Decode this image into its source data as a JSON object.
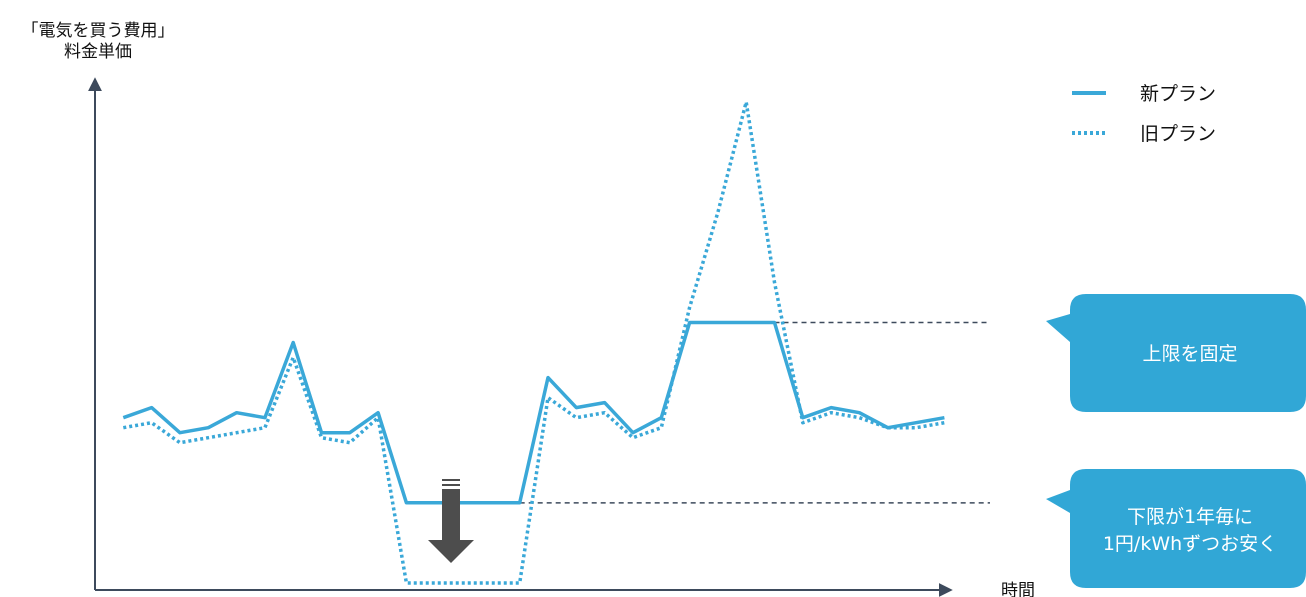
{
  "chart_data": {
    "type": "line",
    "ylabel_lines": [
      "「電気を買う費用」",
      "料金単価"
    ],
    "xlabel": "時間",
    "x": [
      1,
      2,
      3,
      4,
      5,
      6,
      7,
      8,
      9,
      10,
      11,
      12,
      13,
      14,
      15,
      16,
      17,
      18,
      19,
      20,
      21,
      22,
      23,
      24,
      25,
      26,
      27,
      28,
      29,
      30
    ],
    "xlim": [
      0,
      32
    ],
    "ylim": [
      0,
      100
    ],
    "series": [
      {
        "name": "新プラン",
        "style": "solid",
        "color": "#3aa8d8",
        "values": [
          33,
          35,
          30,
          31,
          34,
          33,
          48,
          30,
          30,
          34,
          16,
          16,
          16,
          16,
          16,
          41,
          35,
          36,
          30,
          33,
          52,
          52,
          52,
          52,
          33,
          35,
          34,
          31,
          32,
          33
        ]
      },
      {
        "name": "旧プラン",
        "style": "dotted",
        "color": "#3aa8d8",
        "values": [
          31,
          32,
          28,
          29,
          30,
          31,
          45,
          29,
          28,
          33,
          0,
          0,
          0,
          0,
          0,
          37,
          33,
          34,
          29,
          31,
          55,
          74,
          96,
          60,
          32,
          34,
          33,
          31,
          31,
          32
        ]
      }
    ],
    "legend": [
      {
        "label": "新プラン",
        "style": "solid"
      },
      {
        "label": "旧プラン",
        "style": "dotted"
      }
    ],
    "legend_position": "top-right",
    "reference_lines": [
      {
        "value": 52,
        "style": "dashed",
        "color": "#3d4a5c"
      },
      {
        "value": 16,
        "style": "dashed",
        "color": "#3d4a5c"
      }
    ],
    "annotations": [
      {
        "lines": [
          "上限を固定"
        ],
        "target": 52
      },
      {
        "lines": [
          "下限が1年毎に",
          "1円/kWhずつお安く"
        ],
        "target": 16
      }
    ],
    "grid": false
  },
  "colors": {
    "axis": "#3d4a5c",
    "series": "#3aa8d8",
    "callout": "#31a7d6",
    "arrow": "#4d4d4d"
  }
}
